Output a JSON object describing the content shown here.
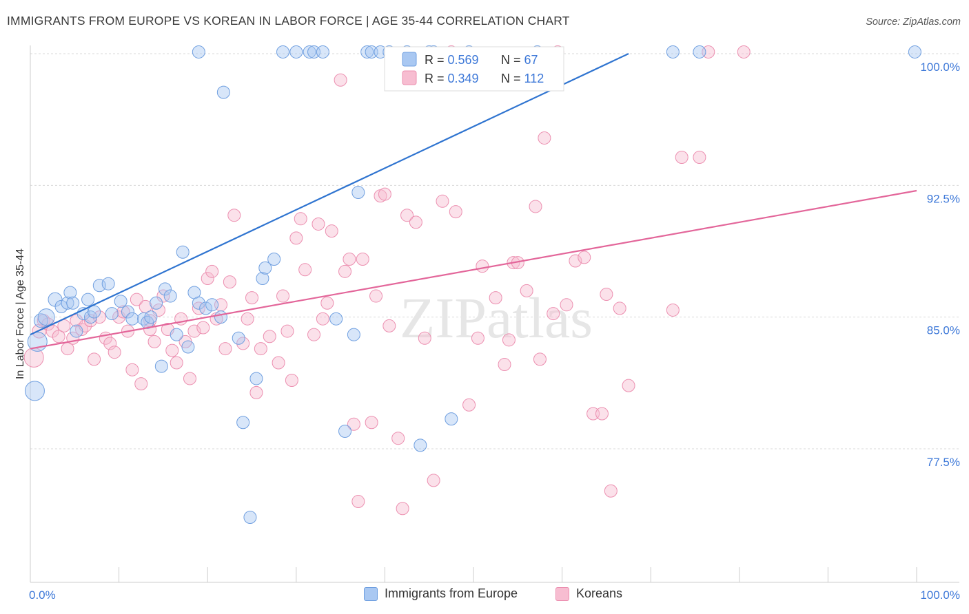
{
  "header": {
    "title": "IMMIGRANTS FROM EUROPE VS KOREAN IN LABOR FORCE | AGE 35-44 CORRELATION CHART",
    "source": "Source: ZipAtlas.com"
  },
  "watermark": "ZIPatlas",
  "colors": {
    "blue_fill": "#a9c8f2",
    "blue_stroke": "#6f9fe0",
    "blue_line": "#2f74d0",
    "pink_fill": "#f7bdd1",
    "pink_stroke": "#ec8fb0",
    "pink_line": "#e3669a",
    "axis_label": "#3d78d8",
    "grid": "#d9d9d9"
  },
  "legend": {
    "rows": [
      {
        "r_label": "R = ",
        "r_value": "0.569",
        "n_label": "N = ",
        "n_value": "67"
      },
      {
        "r_label": "R = ",
        "r_value": "0.349",
        "n_label": "N = ",
        "n_value": "112"
      }
    ]
  },
  "bottom_legend": [
    {
      "label": "Immigrants from Europe"
    },
    {
      "label": "Koreans"
    }
  ],
  "chart_data": {
    "type": "scatter",
    "xlabel": "",
    "ylabel": "In Labor Force | Age 35-44",
    "xlim": [
      0,
      100
    ],
    "ylim": [
      71,
      100.5
    ],
    "x_tick_labels": [
      "0.0%",
      "100.0%"
    ],
    "y_ticks": [
      {
        "value": 100.0,
        "label": "100.0%"
      },
      {
        "value": 92.5,
        "label": "92.5%"
      },
      {
        "value": 85.0,
        "label": "85.0%"
      },
      {
        "value": 77.5,
        "label": "77.5%"
      }
    ],
    "grid": true,
    "legend_placement": "top-center",
    "series": [
      {
        "name": "Immigrants from Europe",
        "color": "blue",
        "trend": {
          "x": [
            0,
            67.5
          ],
          "y": [
            84.0,
            100.0
          ]
        },
        "points": [
          [
            0.5,
            80.8,
            14
          ],
          [
            0.8,
            83.6,
            14
          ],
          [
            1.2,
            84.8,
            10
          ],
          [
            1.8,
            85.0,
            12
          ],
          [
            2.8,
            86.0,
            10
          ],
          [
            3.5,
            85.6,
            9
          ],
          [
            4.2,
            85.8,
            9
          ],
          [
            4.5,
            86.4,
            9
          ],
          [
            4.8,
            85.8,
            9
          ],
          [
            5.2,
            84.2,
            9
          ],
          [
            6.0,
            85.2,
            9
          ],
          [
            6.8,
            85.0,
            9
          ],
          [
            7.2,
            85.3,
            9
          ],
          [
            6.5,
            86.0,
            9
          ],
          [
            7.8,
            86.8,
            9
          ],
          [
            8.8,
            86.9,
            9
          ],
          [
            9.2,
            85.2,
            9
          ],
          [
            10.2,
            85.9,
            9
          ],
          [
            11.0,
            85.3,
            9
          ],
          [
            11.5,
            84.9,
            9
          ],
          [
            12.8,
            84.9,
            9
          ],
          [
            13.2,
            84.7,
            9
          ],
          [
            13.6,
            85.0,
            9
          ],
          [
            14.2,
            85.8,
            9
          ],
          [
            14.8,
            82.2,
            9
          ],
          [
            15.2,
            86.6,
            9
          ],
          [
            15.8,
            86.2,
            9
          ],
          [
            16.5,
            84.0,
            9
          ],
          [
            17.2,
            88.7,
            9
          ],
          [
            17.8,
            83.3,
            9
          ],
          [
            18.5,
            86.4,
            9
          ],
          [
            19.0,
            85.8,
            9
          ],
          [
            19.8,
            85.5,
            9
          ],
          [
            20.5,
            85.7,
            9
          ],
          [
            21.5,
            85.0,
            9
          ],
          [
            21.8,
            97.8,
            9
          ],
          [
            23.5,
            83.8,
            9
          ],
          [
            24.0,
            79.0,
            9
          ],
          [
            24.8,
            73.6,
            9
          ],
          [
            25.5,
            81.5,
            9
          ],
          [
            26.2,
            87.2,
            9
          ],
          [
            26.5,
            87.8,
            9
          ],
          [
            27.5,
            88.3,
            9
          ],
          [
            28.5,
            100.1,
            9
          ],
          [
            30.0,
            100.1,
            9
          ],
          [
            31.5,
            100.1,
            9
          ],
          [
            32.0,
            100.1,
            9
          ],
          [
            33.0,
            100.1,
            9
          ],
          [
            34.5,
            84.9,
            9
          ],
          [
            35.5,
            78.5,
            9
          ],
          [
            36.5,
            84.0,
            9
          ],
          [
            37.0,
            92.1,
            9
          ],
          [
            38.0,
            100.1,
            9
          ],
          [
            38.5,
            100.1,
            9
          ],
          [
            39.5,
            100.1,
            9
          ],
          [
            40.5,
            100.1,
            9
          ],
          [
            42.5,
            100.1,
            9
          ],
          [
            44.0,
            77.7,
            9
          ],
          [
            45.0,
            100.1,
            9
          ],
          [
            45.5,
            100.1,
            9
          ],
          [
            47.5,
            79.2,
            9
          ],
          [
            49.5,
            100.1,
            9
          ],
          [
            57.2,
            100.1,
            9
          ],
          [
            72.5,
            100.1,
            9
          ],
          [
            75.5,
            100.1,
            9
          ],
          [
            99.8,
            100.1,
            9
          ],
          [
            19.0,
            100.1,
            9
          ]
        ]
      },
      {
        "name": "Koreans",
        "color": "pink",
        "trend": {
          "x": [
            0,
            100
          ],
          "y": [
            83.2,
            92.2
          ]
        },
        "points": [
          [
            0.4,
            82.7,
            14
          ],
          [
            1.0,
            84.2,
            10
          ],
          [
            1.5,
            84.8,
            9
          ],
          [
            2.0,
            84.6,
            9
          ],
          [
            2.5,
            84.2,
            9
          ],
          [
            3.2,
            83.9,
            9
          ],
          [
            3.8,
            84.5,
            9
          ],
          [
            4.2,
            83.2,
            9
          ],
          [
            4.8,
            83.8,
            9
          ],
          [
            5.2,
            84.8,
            9
          ],
          [
            5.8,
            84.3,
            9
          ],
          [
            6.2,
            84.5,
            9
          ],
          [
            6.8,
            84.8,
            9
          ],
          [
            7.2,
            82.6,
            9
          ],
          [
            7.8,
            85.0,
            9
          ],
          [
            8.5,
            83.8,
            9
          ],
          [
            9.0,
            83.5,
            9
          ],
          [
            9.5,
            83.0,
            9
          ],
          [
            10.0,
            85.0,
            9
          ],
          [
            10.5,
            85.3,
            9
          ],
          [
            11.0,
            84.2,
            9
          ],
          [
            11.5,
            82.0,
            9
          ],
          [
            12.0,
            86.0,
            9
          ],
          [
            12.5,
            81.2,
            9
          ],
          [
            13.0,
            85.6,
            9
          ],
          [
            13.5,
            84.3,
            9
          ],
          [
            14.0,
            83.6,
            9
          ],
          [
            14.5,
            85.4,
            9
          ],
          [
            15.0,
            86.2,
            9
          ],
          [
            15.5,
            84.3,
            9
          ],
          [
            16.0,
            83.1,
            9
          ],
          [
            16.5,
            82.4,
            9
          ],
          [
            17.0,
            84.9,
            9
          ],
          [
            17.5,
            83.6,
            9
          ],
          [
            18.0,
            81.5,
            9
          ],
          [
            18.5,
            84.2,
            9
          ],
          [
            19.0,
            85.5,
            9
          ],
          [
            19.5,
            84.4,
            9
          ],
          [
            20.0,
            87.2,
            9
          ],
          [
            20.5,
            87.6,
            9
          ],
          [
            21.0,
            84.9,
            9
          ],
          [
            21.5,
            85.7,
            9
          ],
          [
            22.0,
            83.2,
            9
          ],
          [
            22.5,
            87.0,
            9
          ],
          [
            23.0,
            90.8,
            9
          ],
          [
            24.0,
            83.5,
            9
          ],
          [
            24.5,
            84.9,
            9
          ],
          [
            25.0,
            86.1,
            9
          ],
          [
            25.5,
            80.7,
            9
          ],
          [
            26.0,
            83.2,
            9
          ],
          [
            27.0,
            83.9,
            9
          ],
          [
            28.0,
            82.4,
            9
          ],
          [
            28.5,
            86.2,
            9
          ],
          [
            29.0,
            84.2,
            9
          ],
          [
            29.5,
            81.4,
            9
          ],
          [
            30.0,
            89.5,
            9
          ],
          [
            30.5,
            90.6,
            9
          ],
          [
            31.0,
            87.7,
            9
          ],
          [
            32.0,
            84.0,
            9
          ],
          [
            32.5,
            90.3,
            9
          ],
          [
            33.0,
            84.9,
            9
          ],
          [
            33.5,
            85.8,
            9
          ],
          [
            34.0,
            89.9,
            9
          ],
          [
            35.0,
            98.5,
            9
          ],
          [
            35.5,
            87.6,
            9
          ],
          [
            36.0,
            88.3,
            9
          ],
          [
            36.5,
            78.9,
            9
          ],
          [
            37.0,
            74.5,
            9
          ],
          [
            37.5,
            88.3,
            9
          ],
          [
            38.5,
            79.0,
            9
          ],
          [
            39.0,
            86.2,
            9
          ],
          [
            39.5,
            91.9,
            9
          ],
          [
            40.0,
            92.0,
            9
          ],
          [
            40.5,
            84.5,
            9
          ],
          [
            41.5,
            78.1,
            9
          ],
          [
            42.0,
            74.1,
            9
          ],
          [
            42.5,
            90.8,
            9
          ],
          [
            43.5,
            90.4,
            9
          ],
          [
            44.5,
            83.8,
            9
          ],
          [
            45.5,
            75.7,
            9
          ],
          [
            46.5,
            91.6,
            9
          ],
          [
            48.0,
            91.0,
            9
          ],
          [
            49.5,
            80.0,
            9
          ],
          [
            50.5,
            83.8,
            9
          ],
          [
            51.0,
            87.9,
            9
          ],
          [
            52.5,
            86.1,
            9
          ],
          [
            53.5,
            82.3,
            9
          ],
          [
            54.0,
            83.7,
            9
          ],
          [
            54.5,
            88.1,
            9
          ],
          [
            55.0,
            88.1,
            9
          ],
          [
            56.0,
            86.5,
            9
          ],
          [
            57.0,
            91.3,
            9
          ],
          [
            57.5,
            82.6,
            9
          ],
          [
            58.0,
            95.2,
            9
          ],
          [
            59.0,
            85.2,
            9
          ],
          [
            60.5,
            85.7,
            9
          ],
          [
            61.5,
            88.2,
            9
          ],
          [
            62.5,
            88.4,
            9
          ],
          [
            63.5,
            79.5,
            9
          ],
          [
            64.5,
            79.5,
            9
          ],
          [
            65.0,
            86.3,
            9
          ],
          [
            65.5,
            75.1,
            9
          ],
          [
            66.5,
            85.5,
            9
          ],
          [
            67.5,
            81.1,
            9
          ],
          [
            72.5,
            85.4,
            9
          ],
          [
            73.5,
            94.1,
            9
          ],
          [
            75.5,
            94.1,
            9
          ],
          [
            76.5,
            100.1,
            9
          ],
          [
            80.5,
            100.1,
            9
          ],
          [
            59.5,
            100.1,
            9
          ],
          [
            47.5,
            100.1,
            9
          ],
          [
            13.5,
            84.8,
            9
          ]
        ]
      }
    ]
  }
}
